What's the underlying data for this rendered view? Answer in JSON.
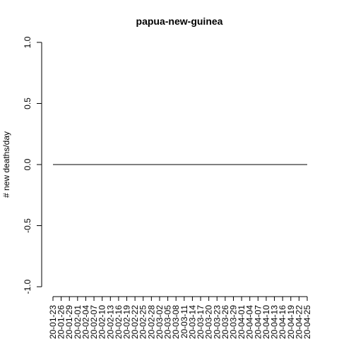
{
  "chart_data": {
    "type": "line",
    "title": "papua-new-guinea",
    "xlabel": "",
    "ylabel": "# new deaths/day",
    "ylim": [
      -1.0,
      1.0
    ],
    "y_ticks": [
      "-1.0",
      "-0.5",
      "0.0",
      "0.5",
      "1.0"
    ],
    "y_tick_values": [
      -1.0,
      -0.5,
      0.0,
      0.5,
      1.0
    ],
    "x_tick_labels": [
      "20-01-23",
      "20-01-26",
      "20-01-29",
      "20-02-01",
      "20-02-04",
      "20-02-07",
      "20-02-10",
      "20-02-13",
      "20-02-16",
      "20-02-19",
      "20-02-22",
      "20-02-25",
      "20-02-28",
      "20-03-02",
      "20-03-05",
      "20-03-08",
      "20-03-11",
      "20-03-14",
      "20-03-17",
      "20-03-20",
      "20-03-23",
      "20-03-26",
      "20-03-29",
      "20-04-01",
      "20-04-04",
      "20-04-07",
      "20-04-10",
      "20-04-13",
      "20-04-16",
      "20-04-19",
      "20-04-22",
      "20-04-25"
    ],
    "series": [
      {
        "x": [
          "20-01-23",
          "20-04-25"
        ],
        "values": [
          0,
          0
        ],
        "color": "#000000"
      }
    ],
    "grid": false
  }
}
